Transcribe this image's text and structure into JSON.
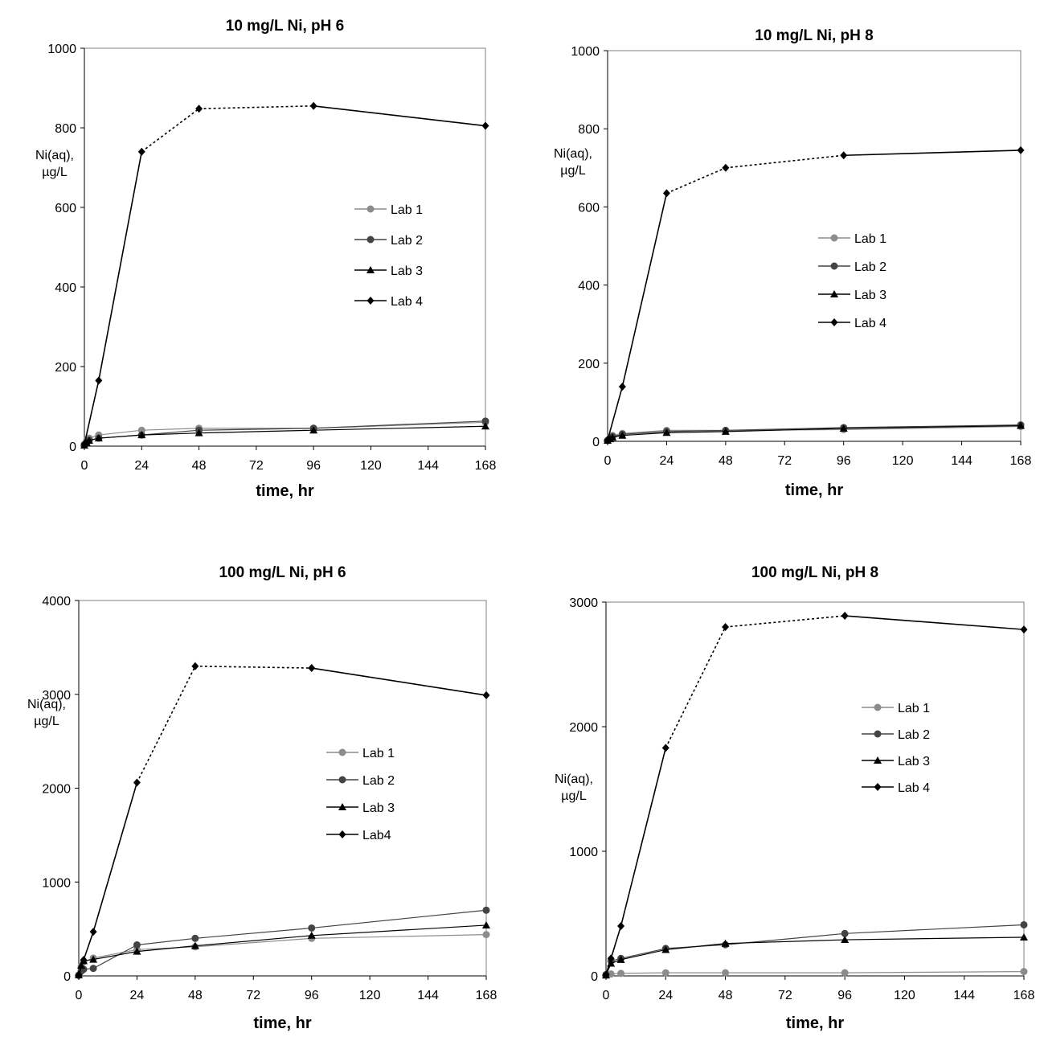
{
  "chart_data": [
    {
      "type": "line",
      "title": "10 mg/L Ni, pH 6",
      "xlabel": "time, hr",
      "ylabel": [
        "Ni(aq),",
        "µg/L"
      ],
      "xlim": [
        0,
        168
      ],
      "ylim": [
        0,
        1000
      ],
      "xticks": [
        0,
        24,
        48,
        72,
        96,
        120,
        144,
        168
      ],
      "yticks": [
        0,
        200,
        400,
        600,
        800,
        1000
      ],
      "legend_position": "center-right",
      "dashed_span": [
        24,
        96
      ],
      "series": [
        {
          "name": "Lab 1",
          "marker": "circle",
          "color": "#8c8c8c",
          "x": [
            0,
            1,
            2,
            6,
            24,
            48,
            96,
            168
          ],
          "y": [
            5,
            15,
            20,
            28,
            40,
            45,
            45,
            60
          ]
        },
        {
          "name": "Lab 2",
          "marker": "circle",
          "color": "#444444",
          "x": [
            0,
            1,
            2,
            6,
            24,
            48,
            96,
            168
          ],
          "y": [
            3,
            10,
            15,
            20,
            28,
            40,
            45,
            63
          ]
        },
        {
          "name": "Lab 3",
          "marker": "triangle",
          "color": "#000000",
          "x": [
            0,
            1,
            2,
            6,
            24,
            48,
            96,
            168
          ],
          "y": [
            2,
            8,
            14,
            20,
            28,
            33,
            40,
            50
          ]
        },
        {
          "name": "Lab 4",
          "marker": "diamond",
          "color": "#000000",
          "x": [
            0,
            6,
            24,
            48,
            96,
            168
          ],
          "y": [
            5,
            165,
            740,
            848,
            855,
            805
          ]
        }
      ]
    },
    {
      "type": "line",
      "title": "10 mg/L Ni, pH 8",
      "xlabel": "time, hr",
      "ylabel": [
        "Ni(aq),",
        "µg/L"
      ],
      "xlim": [
        0,
        168
      ],
      "ylim": [
        0,
        1000
      ],
      "xticks": [
        0,
        24,
        48,
        72,
        96,
        120,
        144,
        168
      ],
      "yticks": [
        0,
        200,
        400,
        600,
        800,
        1000
      ],
      "legend_position": "center-right",
      "dashed_span": [
        24,
        96
      ],
      "series": [
        {
          "name": "Lab 1",
          "marker": "circle",
          "color": "#8c8c8c",
          "x": [
            0,
            1,
            2,
            6,
            24,
            48,
            96,
            168
          ],
          "y": [
            3,
            10,
            15,
            20,
            28,
            28,
            30,
            38
          ]
        },
        {
          "name": "Lab 2",
          "marker": "circle",
          "color": "#444444",
          "x": [
            0,
            1,
            2,
            6,
            24,
            48,
            96,
            168
          ],
          "y": [
            2,
            8,
            12,
            18,
            25,
            28,
            35,
            42
          ]
        },
        {
          "name": "Lab 3",
          "marker": "triangle",
          "color": "#000000",
          "x": [
            0,
            1,
            2,
            6,
            24,
            48,
            96,
            168
          ],
          "y": [
            2,
            6,
            10,
            15,
            22,
            25,
            33,
            40
          ]
        },
        {
          "name": "Lab 4",
          "marker": "diamond",
          "color": "#000000",
          "x": [
            0,
            6,
            24,
            48,
            96,
            168
          ],
          "y": [
            3,
            140,
            635,
            700,
            732,
            745
          ]
        }
      ]
    },
    {
      "type": "line",
      "title": "100 mg/L Ni, pH 6",
      "xlabel": "time, hr",
      "ylabel": [
        "Ni(aq),",
        "µg/L"
      ],
      "xlim": [
        0,
        168
      ],
      "ylim": [
        0,
        4000
      ],
      "xticks": [
        0,
        24,
        48,
        72,
        96,
        120,
        144,
        168
      ],
      "yticks": [
        0,
        1000,
        2000,
        3000,
        4000
      ],
      "legend_position": "center-right",
      "dashed_span": [
        24,
        96
      ],
      "series": [
        {
          "name": "Lab 1",
          "marker": "circle",
          "color": "#8c8c8c",
          "x": [
            0,
            1,
            2,
            6,
            24,
            48,
            96,
            168
          ],
          "y": [
            10,
            100,
            150,
            190,
            280,
            310,
            400,
            440
          ]
        },
        {
          "name": "Lab 2",
          "marker": "circle",
          "color": "#444444",
          "x": [
            0,
            1,
            2,
            6,
            24,
            48,
            96,
            168
          ],
          "y": [
            5,
            50,
            70,
            80,
            330,
            400,
            510,
            700
          ]
        },
        {
          "name": "Lab 3",
          "marker": "triangle",
          "color": "#000000",
          "x": [
            0,
            1,
            2,
            6,
            24,
            48,
            96,
            168
          ],
          "y": [
            10,
            110,
            160,
            175,
            260,
            320,
            430,
            540
          ]
        },
        {
          "name": "Lab4",
          "marker": "diamond",
          "color": "#000000",
          "x": [
            0,
            2,
            6,
            24,
            48,
            96,
            168
          ],
          "y": [
            10,
            170,
            470,
            2060,
            3300,
            3280,
            2990
          ]
        }
      ]
    },
    {
      "type": "line",
      "title": "100 mg/L Ni, pH 8",
      "xlabel": "time, hr",
      "ylabel": [
        "Ni(aq),",
        "µg/L"
      ],
      "xlim": [
        0,
        168
      ],
      "ylim": [
        0,
        3000
      ],
      "xticks": [
        0,
        24,
        48,
        72,
        96,
        120,
        144,
        168
      ],
      "yticks": [
        0,
        1000,
        2000,
        3000
      ],
      "legend_position": "top-right",
      "dashed_span": [
        24,
        96
      ],
      "series": [
        {
          "name": "Lab 1",
          "marker": "circle",
          "color": "#8c8c8c",
          "x": [
            0,
            2,
            6,
            24,
            48,
            96,
            168
          ],
          "y": [
            5,
            15,
            20,
            25,
            25,
            25,
            35
          ]
        },
        {
          "name": "Lab 2",
          "marker": "circle",
          "color": "#444444",
          "x": [
            0,
            2,
            6,
            24,
            48,
            96,
            168
          ],
          "y": [
            10,
            120,
            140,
            220,
            250,
            340,
            410
          ]
        },
        {
          "name": "Lab 3",
          "marker": "triangle",
          "color": "#000000",
          "x": [
            0,
            2,
            6,
            24,
            48,
            96,
            168
          ],
          "y": [
            5,
            100,
            130,
            210,
            260,
            290,
            310
          ]
        },
        {
          "name": "Lab 4",
          "marker": "diamond",
          "color": "#000000",
          "x": [
            0,
            2,
            6,
            24,
            48,
            96,
            168
          ],
          "y": [
            10,
            140,
            400,
            1830,
            2800,
            2890,
            2780
          ]
        }
      ]
    }
  ]
}
